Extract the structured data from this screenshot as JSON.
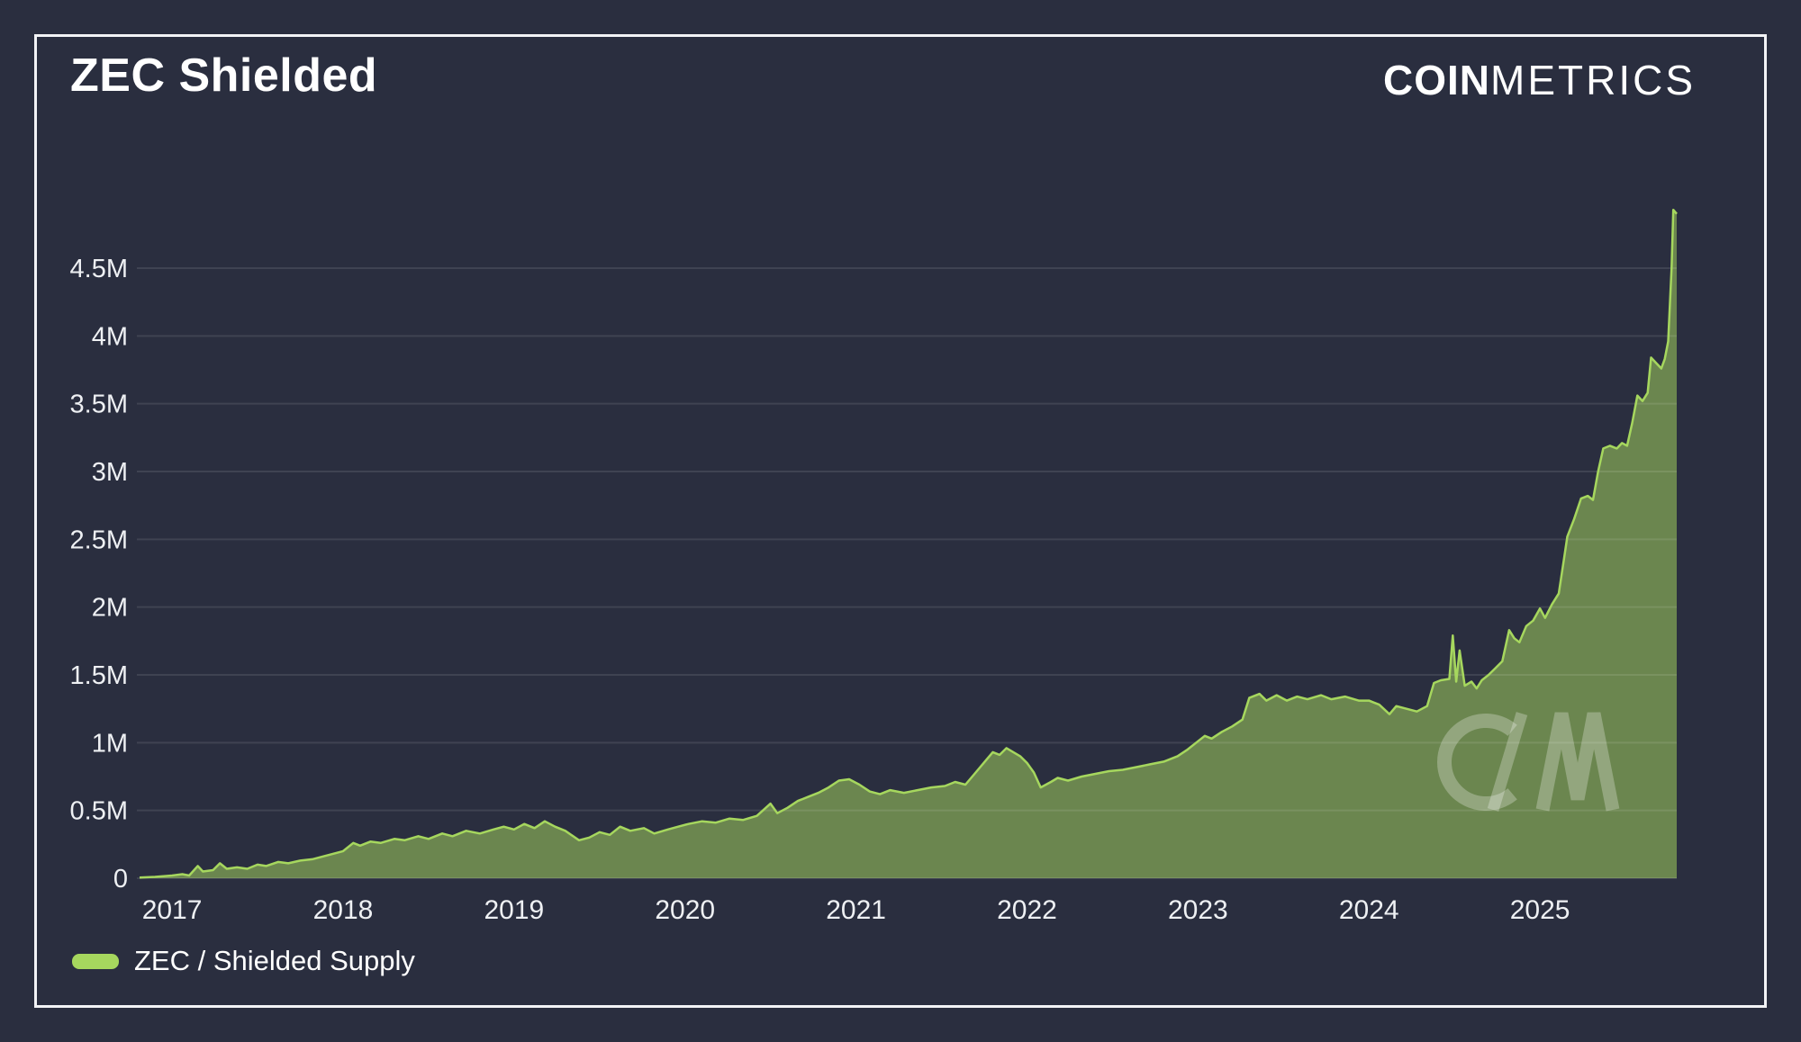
{
  "header": {
    "title": "ZEC Shielded",
    "brand_bold": "COIN",
    "brand_light": "METRICS"
  },
  "legend": {
    "label": "ZEC / Shielded Supply"
  },
  "watermark": {
    "letters": "CM"
  },
  "colors": {
    "background": "#2a2e3f",
    "frame_border": "#f2f3f6",
    "line": "#a6d75e",
    "area_fill": "rgba(166,215,94,0.52)",
    "grid": "rgba(255,255,255,0.10)",
    "axis_text": "#eef0f3",
    "title_text": "#ffffff",
    "watermark": "rgba(255,255,255,0.27)"
  },
  "chart_data": {
    "type": "area",
    "title": "ZEC Shielded",
    "xlabel": "",
    "ylabel": "",
    "unit_suffix": "M",
    "grid": "horizontal-only",
    "legend_position": "bottom-left",
    "xlim": [
      2016.81,
      2025.8
    ],
    "ylim_millions": [
      0,
      4.96
    ],
    "x_ticks": [
      2017,
      2018,
      2019,
      2020,
      2021,
      2022,
      2023,
      2024,
      2025
    ],
    "y_ticks": [
      {
        "value": 0,
        "label": "0"
      },
      {
        "value": 0.5,
        "label": "0.5M"
      },
      {
        "value": 1,
        "label": "1M"
      },
      {
        "value": 1.5,
        "label": "1.5M"
      },
      {
        "value": 2,
        "label": "2M"
      },
      {
        "value": 2.5,
        "label": "2.5M"
      },
      {
        "value": 3,
        "label": "3M"
      },
      {
        "value": 3.5,
        "label": "3.5M"
      },
      {
        "value": 4,
        "label": "4M"
      },
      {
        "value": 4.5,
        "label": "4.5M"
      }
    ],
    "series": [
      {
        "name": "ZEC / Shielded Supply",
        "points_year_millions": [
          [
            2016.81,
            0.005
          ],
          [
            2016.9,
            0.01
          ],
          [
            2017.0,
            0.02
          ],
          [
            2017.06,
            0.03
          ],
          [
            2017.1,
            0.02
          ],
          [
            2017.15,
            0.09
          ],
          [
            2017.18,
            0.05
          ],
          [
            2017.24,
            0.06
          ],
          [
            2017.28,
            0.11
          ],
          [
            2017.32,
            0.07
          ],
          [
            2017.38,
            0.08
          ],
          [
            2017.44,
            0.07
          ],
          [
            2017.5,
            0.1
          ],
          [
            2017.55,
            0.09
          ],
          [
            2017.62,
            0.12
          ],
          [
            2017.68,
            0.11
          ],
          [
            2017.75,
            0.13
          ],
          [
            2017.82,
            0.14
          ],
          [
            2017.88,
            0.16
          ],
          [
            2017.94,
            0.18
          ],
          [
            2018.0,
            0.2
          ],
          [
            2018.06,
            0.26
          ],
          [
            2018.1,
            0.24
          ],
          [
            2018.16,
            0.27
          ],
          [
            2018.22,
            0.26
          ],
          [
            2018.3,
            0.29
          ],
          [
            2018.36,
            0.28
          ],
          [
            2018.44,
            0.31
          ],
          [
            2018.5,
            0.29
          ],
          [
            2018.58,
            0.33
          ],
          [
            2018.64,
            0.31
          ],
          [
            2018.72,
            0.35
          ],
          [
            2018.8,
            0.33
          ],
          [
            2018.88,
            0.36
          ],
          [
            2018.94,
            0.38
          ],
          [
            2019.0,
            0.36
          ],
          [
            2019.06,
            0.4
          ],
          [
            2019.12,
            0.37
          ],
          [
            2019.18,
            0.42
          ],
          [
            2019.24,
            0.38
          ],
          [
            2019.3,
            0.35
          ],
          [
            2019.38,
            0.28
          ],
          [
            2019.44,
            0.3
          ],
          [
            2019.5,
            0.34
          ],
          [
            2019.56,
            0.32
          ],
          [
            2019.62,
            0.38
          ],
          [
            2019.68,
            0.35
          ],
          [
            2019.76,
            0.37
          ],
          [
            2019.82,
            0.33
          ],
          [
            2019.9,
            0.36
          ],
          [
            2019.96,
            0.38
          ],
          [
            2020.02,
            0.4
          ],
          [
            2020.1,
            0.42
          ],
          [
            2020.18,
            0.41
          ],
          [
            2020.26,
            0.44
          ],
          [
            2020.34,
            0.43
          ],
          [
            2020.42,
            0.46
          ],
          [
            2020.5,
            0.55
          ],
          [
            2020.54,
            0.48
          ],
          [
            2020.6,
            0.52
          ],
          [
            2020.66,
            0.57
          ],
          [
            2020.72,
            0.6
          ],
          [
            2020.78,
            0.63
          ],
          [
            2020.84,
            0.67
          ],
          [
            2020.9,
            0.72
          ],
          [
            2020.96,
            0.73
          ],
          [
            2021.02,
            0.69
          ],
          [
            2021.08,
            0.64
          ],
          [
            2021.14,
            0.62
          ],
          [
            2021.2,
            0.65
          ],
          [
            2021.28,
            0.63
          ],
          [
            2021.36,
            0.65
          ],
          [
            2021.44,
            0.67
          ],
          [
            2021.52,
            0.68
          ],
          [
            2021.58,
            0.71
          ],
          [
            2021.64,
            0.69
          ],
          [
            2021.7,
            0.78
          ],
          [
            2021.76,
            0.87
          ],
          [
            2021.8,
            0.93
          ],
          [
            2021.84,
            0.91
          ],
          [
            2021.88,
            0.96
          ],
          [
            2021.92,
            0.93
          ],
          [
            2021.96,
            0.9
          ],
          [
            2022.0,
            0.85
          ],
          [
            2022.04,
            0.78
          ],
          [
            2022.08,
            0.67
          ],
          [
            2022.14,
            0.71
          ],
          [
            2022.18,
            0.74
          ],
          [
            2022.24,
            0.72
          ],
          [
            2022.32,
            0.75
          ],
          [
            2022.4,
            0.77
          ],
          [
            2022.48,
            0.79
          ],
          [
            2022.56,
            0.8
          ],
          [
            2022.64,
            0.82
          ],
          [
            2022.72,
            0.84
          ],
          [
            2022.8,
            0.86
          ],
          [
            2022.88,
            0.9
          ],
          [
            2022.94,
            0.95
          ],
          [
            2023.0,
            1.01
          ],
          [
            2023.04,
            1.05
          ],
          [
            2023.08,
            1.03
          ],
          [
            2023.14,
            1.08
          ],
          [
            2023.2,
            1.12
          ],
          [
            2023.26,
            1.17
          ],
          [
            2023.3,
            1.33
          ],
          [
            2023.36,
            1.36
          ],
          [
            2023.4,
            1.31
          ],
          [
            2023.46,
            1.35
          ],
          [
            2023.52,
            1.31
          ],
          [
            2023.58,
            1.34
          ],
          [
            2023.64,
            1.32
          ],
          [
            2023.72,
            1.35
          ],
          [
            2023.78,
            1.32
          ],
          [
            2023.86,
            1.34
          ],
          [
            2023.94,
            1.31
          ],
          [
            2024.0,
            1.31
          ],
          [
            2024.06,
            1.28
          ],
          [
            2024.12,
            1.21
          ],
          [
            2024.16,
            1.27
          ],
          [
            2024.22,
            1.25
          ],
          [
            2024.28,
            1.23
          ],
          [
            2024.34,
            1.27
          ],
          [
            2024.38,
            1.44
          ],
          [
            2024.42,
            1.46
          ],
          [
            2024.47,
            1.47
          ],
          [
            2024.49,
            1.79
          ],
          [
            2024.51,
            1.45
          ],
          [
            2024.53,
            1.68
          ],
          [
            2024.56,
            1.42
          ],
          [
            2024.6,
            1.45
          ],
          [
            2024.63,
            1.4
          ],
          [
            2024.66,
            1.46
          ],
          [
            2024.7,
            1.5
          ],
          [
            2024.74,
            1.55
          ],
          [
            2024.78,
            1.6
          ],
          [
            2024.82,
            1.83
          ],
          [
            2024.85,
            1.77
          ],
          [
            2024.88,
            1.74
          ],
          [
            2024.92,
            1.86
          ],
          [
            2024.96,
            1.9
          ],
          [
            2025.0,
            1.99
          ],
          [
            2025.03,
            1.92
          ],
          [
            2025.07,
            2.02
          ],
          [
            2025.11,
            2.1
          ],
          [
            2025.14,
            2.35
          ],
          [
            2025.16,
            2.52
          ],
          [
            2025.2,
            2.65
          ],
          [
            2025.24,
            2.8
          ],
          [
            2025.28,
            2.82
          ],
          [
            2025.31,
            2.79
          ],
          [
            2025.34,
            3.0
          ],
          [
            2025.37,
            3.17
          ],
          [
            2025.41,
            3.19
          ],
          [
            2025.45,
            3.17
          ],
          [
            2025.48,
            3.21
          ],
          [
            2025.51,
            3.19
          ],
          [
            2025.54,
            3.36
          ],
          [
            2025.57,
            3.56
          ],
          [
            2025.6,
            3.52
          ],
          [
            2025.63,
            3.58
          ],
          [
            2025.65,
            3.84
          ],
          [
            2025.68,
            3.8
          ],
          [
            2025.71,
            3.76
          ],
          [
            2025.73,
            3.83
          ],
          [
            2025.75,
            3.96
          ],
          [
            2025.77,
            4.5
          ],
          [
            2025.78,
            4.93
          ],
          [
            2025.8,
            4.9
          ]
        ]
      }
    ]
  }
}
